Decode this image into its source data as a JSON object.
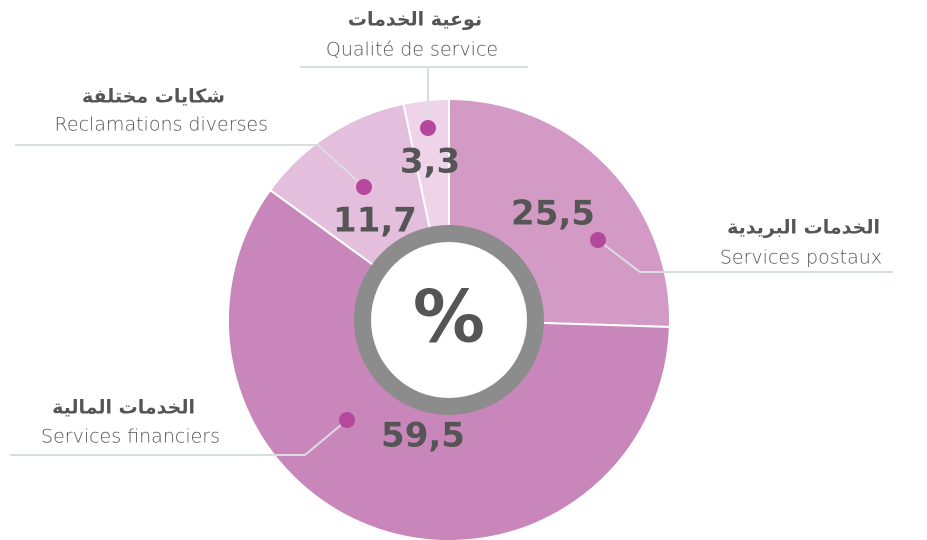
{
  "chart_data": {
    "type": "pie",
    "categories": [
      "Services postaux",
      "Services financiers",
      "Reclamations diverses",
      "Qualité de service"
    ],
    "categories_ar": [
      "الخدمات البريدية",
      "الخدمات المالية",
      "شكايات مختلفة",
      "نوعية الخدمات"
    ],
    "values": [
      25.5,
      59.5,
      11.7,
      3.3
    ],
    "value_labels": [
      "25,5",
      "59,5",
      "11,7",
      "3,3"
    ],
    "colors": [
      "#d49ac6",
      "#c986bb",
      "#e4bedd",
      "#eed3e9"
    ],
    "center_label": "%"
  }
}
